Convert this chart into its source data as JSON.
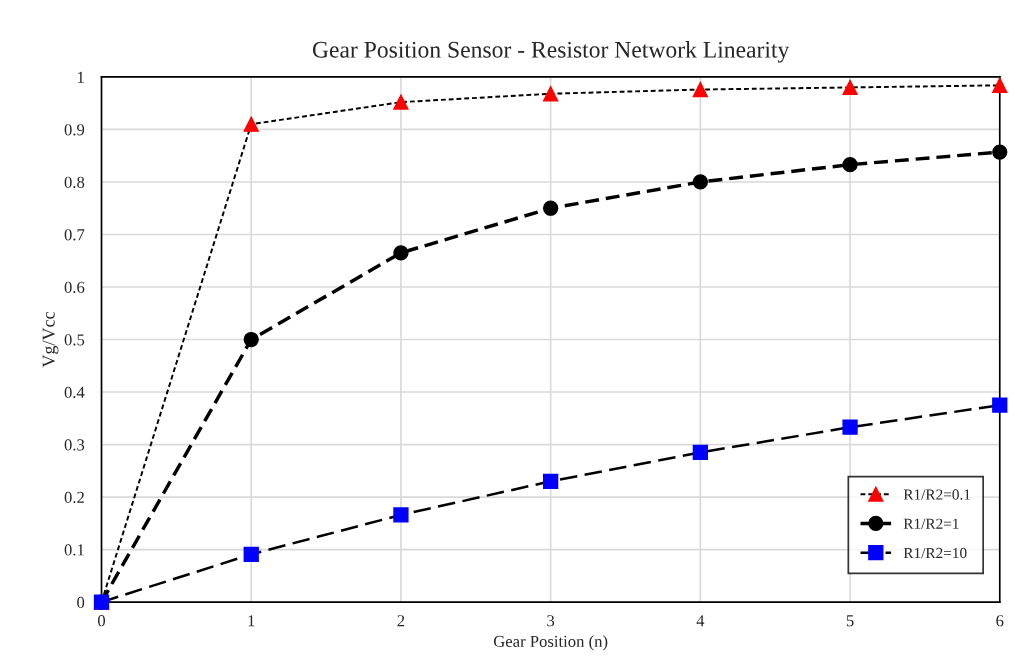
{
  "chart_data": {
    "type": "line",
    "title": "Gear Position Sensor - Resistor Network Linearity",
    "xlabel": "Gear Position (n)",
    "ylabel": "Vg/Vcc",
    "x": [
      0,
      1,
      2,
      3,
      4,
      5,
      6
    ],
    "series": [
      {
        "name": "R1/R2=0.1",
        "color": "#ff0000",
        "marker": "triangle",
        "line_style": "dotted",
        "values": [
          0,
          0.91,
          0.952,
          0.968,
          0.976,
          0.98,
          0.984
        ]
      },
      {
        "name": "R1/R2=1",
        "color": "#000000",
        "marker": "circle",
        "line_style": "dashed",
        "values": [
          0,
          0.5,
          0.665,
          0.75,
          0.8,
          0.833,
          0.857
        ]
      },
      {
        "name": "R1/R2=10",
        "color": "#0000ff",
        "marker": "square",
        "line_style": "dashed",
        "values": [
          0,
          0.091,
          0.166,
          0.23,
          0.285,
          0.333,
          0.375
        ]
      }
    ],
    "xlim": [
      0,
      6
    ],
    "xticks": [
      0,
      1,
      2,
      3,
      4,
      5,
      6
    ],
    "ylim": [
      0,
      1
    ],
    "yticks": [
      0,
      0.1,
      0.2,
      0.3,
      0.4,
      0.5,
      0.6,
      0.7,
      0.8,
      0.9,
      1
    ],
    "grid": true,
    "legend": "bottom right"
  }
}
